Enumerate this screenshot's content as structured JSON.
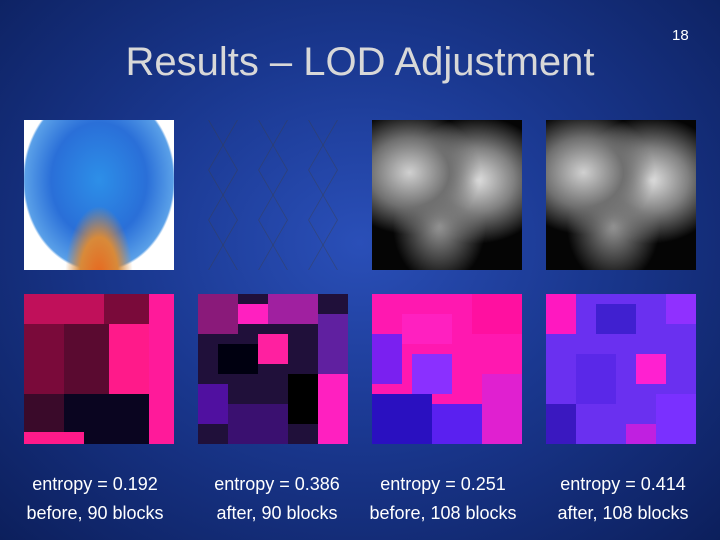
{
  "slide": {
    "title": "Results – LOD Adjustment",
    "page_number": "18",
    "panels": [
      {
        "caption": [
          "entropy = 0.192",
          "before, 90 blocks"
        ]
      },
      {
        "caption": [
          "entropy = 0.386",
          "after, 90 blocks"
        ]
      },
      {
        "caption": [
          "entropy = 0.251",
          "before, 108 blocks"
        ]
      },
      {
        "caption": [
          "entropy = 0.414",
          "after, 108 blocks"
        ]
      }
    ]
  }
}
